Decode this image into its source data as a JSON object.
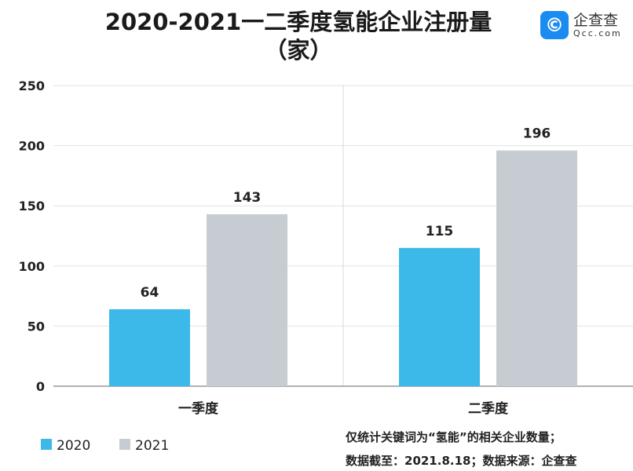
{
  "logo": {
    "name": "企查查",
    "domain": "Qcc.com"
  },
  "chart_data": {
    "type": "bar",
    "title": "2020-2021一二季度氢能企业注册量（家）",
    "title_line1": "2020-2021一二季度氢能企业注册量",
    "title_line2": "（家）",
    "categories": [
      "一季度",
      "二季度"
    ],
    "series": [
      {
        "name": "2020",
        "color": "#3cb9e8",
        "values": [
          64,
          115
        ]
      },
      {
        "name": "2021",
        "color": "#c6ccd2",
        "values": [
          143,
          196
        ]
      }
    ],
    "ylim": [
      0,
      250
    ],
    "yticks": [
      0,
      50,
      100,
      150,
      200,
      250
    ],
    "grid": true,
    "legend": "bottom-left",
    "notes": [
      "仅统计关键词为“氢能”的相关企业数量；",
      "数据截至：2021.8.18；数据来源：企查查"
    ]
  }
}
